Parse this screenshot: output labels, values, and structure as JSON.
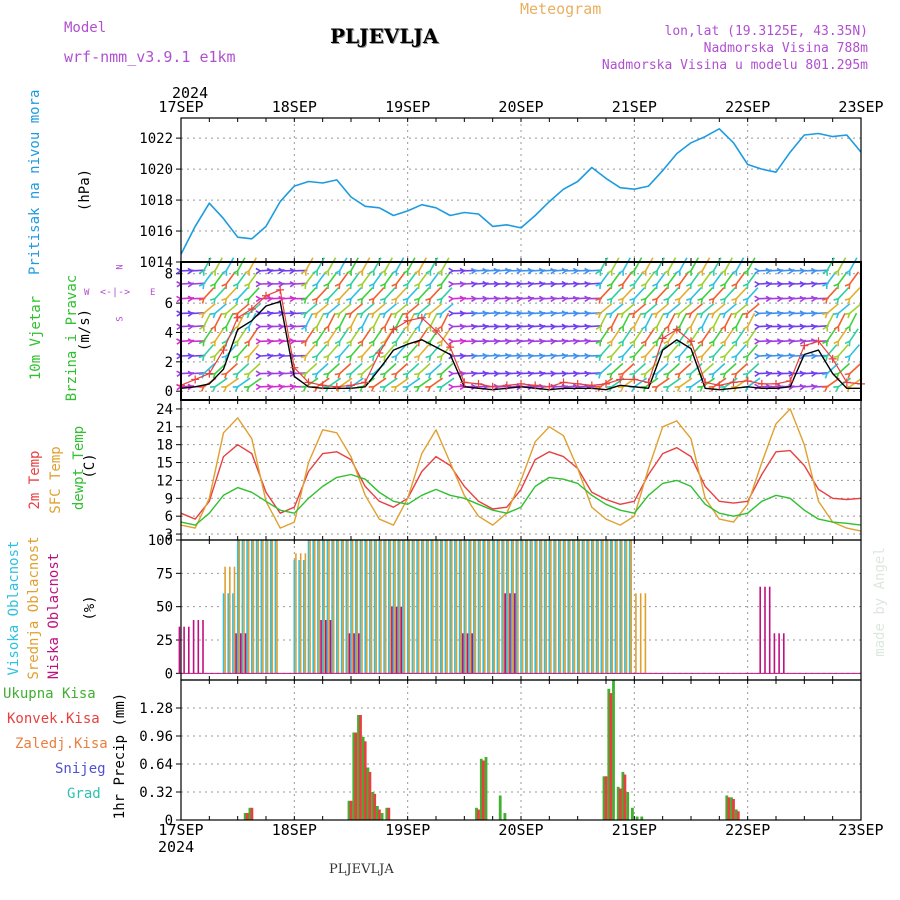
{
  "header": {
    "model_label": "Model",
    "model_name": "wrf-nmm_v3.9.1  e1km",
    "station": "PLJEVLJA",
    "product": "Meteogram",
    "coords": "lon,lat (19.3125E, 43.35N)",
    "altitude": "Nadmorska Visina 788m",
    "model_altitude": "Nadmorska Visina u modelu 801.295m",
    "footer_station": "PLJEVLJA",
    "credit": "made by Angel"
  },
  "colors": {
    "pressure": "#1e9be0",
    "wind_speed": "#000000",
    "gust": "#e84040",
    "t2m": "#e84040",
    "tsfc": "#e0a030",
    "dewpt": "#30c030",
    "cloud_high": "#30c0e0",
    "cloud_mid": "#e0a030",
    "cloud_low": "#c01080",
    "precip_total": "#40b030",
    "precip_conv": "#e84040"
  },
  "chart_data": [
    {
      "type": "line",
      "panel": "pressure",
      "ylabel_1": "Pritisak na nivou mora",
      "ylabel_2": "(hPa)",
      "x_ticks": [
        "17SEP",
        "18SEP",
        "19SEP",
        "20SEP",
        "21SEP",
        "22SEP",
        "23SEP"
      ],
      "year_top": "2024",
      "ylim": [
        1014,
        1023.3
      ],
      "y_ticks": [
        "1014",
        "1016",
        "1018",
        "1020",
        "1022"
      ],
      "x_hours": [
        0,
        3,
        6,
        9,
        12,
        15,
        18,
        21,
        24,
        27,
        30,
        33,
        36,
        39,
        42,
        45,
        48,
        51,
        54,
        57,
        60,
        63,
        66,
        69,
        72,
        75,
        78,
        81,
        84,
        87,
        90,
        93,
        96,
        99,
        102,
        105,
        108,
        111,
        114,
        117,
        120,
        123,
        126,
        129,
        132,
        135,
        138,
        141,
        144
      ],
      "values": [
        1014.5,
        1016.3,
        1017.8,
        1016.8,
        1015.6,
        1015.5,
        1016.3,
        1017.9,
        1018.9,
        1019.2,
        1019.1,
        1019.3,
        1018.2,
        1017.6,
        1017.5,
        1017.0,
        1017.3,
        1017.7,
        1017.5,
        1017.0,
        1017.2,
        1017.1,
        1016.3,
        1016.4,
        1016.2,
        1017.0,
        1017.9,
        1018.7,
        1019.2,
        1020.1,
        1019.4,
        1018.8,
        1018.7,
        1018.9,
        1019.9,
        1021.0,
        1021.7,
        1022.1,
        1022.6,
        1021.7,
        1020.3,
        1020.0,
        1019.8,
        1021.1,
        1022.2,
        1022.3,
        1022.1,
        1022.2,
        1021.1
      ]
    },
    {
      "type": "line",
      "panel": "wind",
      "ylabel_1": "10m Vjetar",
      "ylabel_2": "Brzina i Pravac",
      "ylabel_3": "(m/s)",
      "compass_n": "N",
      "compass_s": "S",
      "compass_w": "W",
      "compass_e": "E",
      "ylim": [
        -0.6,
        8.8
      ],
      "y_ticks": [
        "0",
        "2",
        "4",
        "6",
        "8"
      ],
      "x_hours": [
        0,
        3,
        6,
        9,
        12,
        15,
        18,
        21,
        24,
        27,
        30,
        33,
        36,
        39,
        42,
        45,
        48,
        51,
        54,
        57,
        60,
        63,
        66,
        69,
        72,
        75,
        78,
        81,
        84,
        87,
        90,
        93,
        96,
        99,
        102,
        105,
        108,
        111,
        114,
        117,
        120,
        123,
        126,
        129,
        132,
        135,
        138,
        141,
        144
      ],
      "series": [
        {
          "values": [
            0.2,
            0.3,
            0.5,
            1.5,
            4.2,
            4.8,
            5.8,
            6.1,
            1.0,
            0.3,
            0.2,
            0.2,
            0.2,
            0.3,
            1.5,
            2.8,
            3.2,
            3.5,
            3.0,
            2.5,
            0.3,
            0.2,
            0.1,
            0.2,
            0.3,
            0.2,
            0.1,
            0.2,
            0.2,
            0.2,
            0.1,
            0.4,
            0.3,
            0.2,
            2.8,
            3.5,
            2.9,
            0.2,
            0.1,
            0.2,
            0.3,
            0.2,
            0.2,
            0.3,
            2.5,
            2.8,
            1.2,
            0.2,
            0.2
          ]
        },
        {
          "values": [
            0.4,
            0.8,
            1.2,
            2.8,
            5.0,
            5.6,
            6.5,
            6.9,
            1.6,
            0.6,
            0.4,
            0.3,
            0.4,
            0.6,
            2.6,
            4.2,
            4.8,
            5.0,
            4.1,
            3.0,
            0.6,
            0.5,
            0.3,
            0.4,
            0.5,
            0.4,
            0.3,
            0.6,
            0.5,
            0.4,
            0.5,
            0.8,
            0.8,
            0.6,
            3.6,
            4.2,
            3.4,
            0.6,
            0.4,
            0.6,
            0.7,
            0.5,
            0.5,
            0.7,
            3.1,
            3.4,
            2.2,
            0.6,
            0.5
          ]
        }
      ]
    },
    {
      "type": "line",
      "panel": "temperature",
      "ylabel_1": "2m Temp",
      "ylabel_2": "SFC Temp",
      "ylabel_3": "dewpt Temp",
      "ylabel_4": "(C)",
      "ylim": [
        2,
        25.5
      ],
      "y_ticks": [
        "3",
        "6",
        "9",
        "12",
        "15",
        "18",
        "21",
        "24"
      ],
      "x_hours": [
        0,
        3,
        6,
        9,
        12,
        15,
        18,
        21,
        24,
        27,
        30,
        33,
        36,
        39,
        42,
        45,
        48,
        51,
        54,
        57,
        60,
        63,
        66,
        69,
        72,
        75,
        78,
        81,
        84,
        87,
        90,
        93,
        96,
        99,
        102,
        105,
        108,
        111,
        114,
        117,
        120,
        123,
        126,
        129,
        132,
        135,
        138,
        141,
        144
      ],
      "series": [
        {
          "name": "2m Temp",
          "values": [
            6.5,
            5.5,
            8.5,
            16.0,
            18.0,
            16.5,
            10.0,
            6.5,
            7.5,
            13.5,
            16.5,
            16.8,
            15.5,
            11.0,
            8.5,
            7.5,
            9.0,
            13.5,
            16.0,
            14.5,
            11.0,
            8.5,
            7.2,
            7.5,
            10.5,
            15.5,
            16.8,
            16.0,
            14.0,
            10.0,
            8.8,
            8.0,
            8.5,
            13.0,
            16.5,
            17.5,
            16.0,
            11.0,
            8.5,
            8.2,
            8.5,
            13.0,
            16.8,
            17.0,
            14.5,
            10.5,
            9.0,
            8.8,
            9.0
          ]
        },
        {
          "name": "SFC Temp",
          "values": [
            4.5,
            4.0,
            9.0,
            20.0,
            22.5,
            19.0,
            8.5,
            4.0,
            5.0,
            15.0,
            20.5,
            20.0,
            16.0,
            9.5,
            5.5,
            4.5,
            9.0,
            16.5,
            20.5,
            15.0,
            9.5,
            6.0,
            4.5,
            6.5,
            12.0,
            18.5,
            21.0,
            19.5,
            14.0,
            7.5,
            5.5,
            4.5,
            6.0,
            14.0,
            21.0,
            22.0,
            19.0,
            9.0,
            5.5,
            5.0,
            8.0,
            15.0,
            21.5,
            24.0,
            18.0,
            8.5,
            5.0,
            4.0,
            3.5
          ]
        },
        {
          "name": "dewpt Temp",
          "values": [
            5.0,
            4.5,
            6.5,
            9.5,
            10.8,
            10.0,
            8.5,
            7.0,
            6.5,
            9.0,
            11.0,
            12.5,
            13.0,
            12.2,
            10.0,
            8.5,
            8.0,
            9.5,
            10.5,
            9.5,
            9.0,
            8.0,
            7.0,
            6.5,
            7.5,
            11.0,
            12.5,
            12.2,
            11.5,
            9.5,
            8.0,
            7.0,
            6.5,
            9.5,
            11.5,
            12.0,
            11.0,
            8.0,
            6.5,
            6.0,
            6.5,
            8.5,
            9.5,
            9.0,
            7.0,
            5.5,
            5.0,
            4.8,
            4.5
          ]
        }
      ]
    },
    {
      "type": "bar",
      "panel": "cloud",
      "ylabel_1": "Visoka Oblacnost",
      "ylabel_2": "Srednja Oblacnost",
      "ylabel_3": "Niska Oblacnost",
      "ylabel_4": "(%)",
      "ylim": [
        -5,
        100
      ],
      "y_ticks": [
        "0",
        "25",
        "50",
        "75",
        "100"
      ],
      "x_hours": [
        0,
        3,
        6,
        9,
        12,
        15,
        18,
        21,
        24,
        27,
        30,
        33,
        36,
        39,
        42,
        45,
        48,
        51,
        54,
        57,
        60,
        63,
        66,
        69,
        72,
        75,
        78,
        81,
        84,
        87,
        90,
        93,
        96,
        99,
        102,
        105,
        108,
        111,
        114,
        117,
        120,
        123,
        126,
        129,
        132,
        135,
        138,
        141,
        144
      ],
      "series": [
        {
          "name": "Visoka Oblacnost",
          "values": [
            0,
            0,
            0,
            60,
            100,
            100,
            100,
            0,
            85,
            100,
            100,
            100,
            100,
            100,
            100,
            100,
            100,
            100,
            100,
            100,
            100,
            100,
            100,
            100,
            100,
            100,
            100,
            100,
            100,
            100,
            100,
            100,
            0,
            0,
            0,
            0,
            0,
            0,
            0,
            0,
            0,
            0,
            0,
            0,
            0,
            0,
            0,
            0,
            0
          ]
        },
        {
          "name": "Srednja Oblacnost",
          "values": [
            0,
            0,
            0,
            80,
            100,
            100,
            100,
            0,
            90,
            100,
            100,
            100,
            100,
            100,
            100,
            100,
            100,
            100,
            100,
            100,
            100,
            100,
            100,
            100,
            100,
            100,
            100,
            100,
            100,
            100,
            100,
            100,
            60,
            0,
            0,
            0,
            0,
            0,
            0,
            0,
            0,
            0,
            0,
            0,
            0,
            0,
            0,
            0,
            0
          ]
        },
        {
          "name": "Niska Oblacnost",
          "values": [
            35,
            40,
            0,
            0,
            30,
            0,
            0,
            0,
            0,
            0,
            40,
            0,
            30,
            0,
            0,
            50,
            0,
            0,
            0,
            0,
            30,
            0,
            0,
            60,
            0,
            0,
            0,
            0,
            0,
            0,
            0,
            0,
            0,
            0,
            0,
            0,
            0,
            0,
            0,
            0,
            0,
            65,
            30,
            0,
            0,
            0,
            0,
            0,
            0
          ]
        }
      ]
    },
    {
      "type": "bar",
      "panel": "precip",
      "ylabel_main": "1hr Precip (mm)",
      "legend": [
        "Ukupna Kisa",
        "Konvek.Kisa",
        "Zaledj.Kisa",
        "Snijeg",
        "Grad"
      ],
      "ylim": [
        0,
        1.6
      ],
      "y_ticks": [
        "0",
        "0.32",
        "0.64",
        "0.96",
        "1.28"
      ],
      "x_ticks": [
        "17SEP",
        "18SEP",
        "19SEP",
        "20SEP",
        "21SEP",
        "22SEP",
        "23SEP"
      ],
      "year_bottom": "2024",
      "x_hours": [
        14,
        15,
        36,
        37,
        38,
        39,
        40,
        41,
        42,
        43,
        44,
        63,
        64,
        65,
        68,
        69,
        90,
        91,
        92,
        93,
        94,
        95,
        96,
        97,
        98,
        116,
        117,
        118
      ],
      "series": [
        {
          "name": "Ukupna Kisa",
          "values": [
            0.08,
            0.14,
            0.22,
            1.0,
            1.2,
            0.95,
            0.6,
            0.32,
            0.16,
            0.08,
            0.14,
            0.14,
            0.7,
            0.72,
            0.28,
            0.08,
            0.5,
            1.5,
            1.6,
            0.38,
            0.55,
            0.32,
            0.14,
            0.04,
            0.04,
            0.28,
            0.26,
            0.12
          ]
        },
        {
          "name": "Konvek.Kisa",
          "values": [
            0.08,
            0.14,
            0.22,
            1.0,
            1.2,
            0.9,
            0.55,
            0.3,
            0.12,
            0.0,
            0.14,
            0.12,
            0.68,
            0.0,
            0.0,
            0.0,
            0.5,
            1.45,
            0.0,
            0.36,
            0.52,
            0.0,
            0.0,
            0.0,
            0.0,
            0.26,
            0.24,
            0.1
          ]
        }
      ]
    }
  ]
}
